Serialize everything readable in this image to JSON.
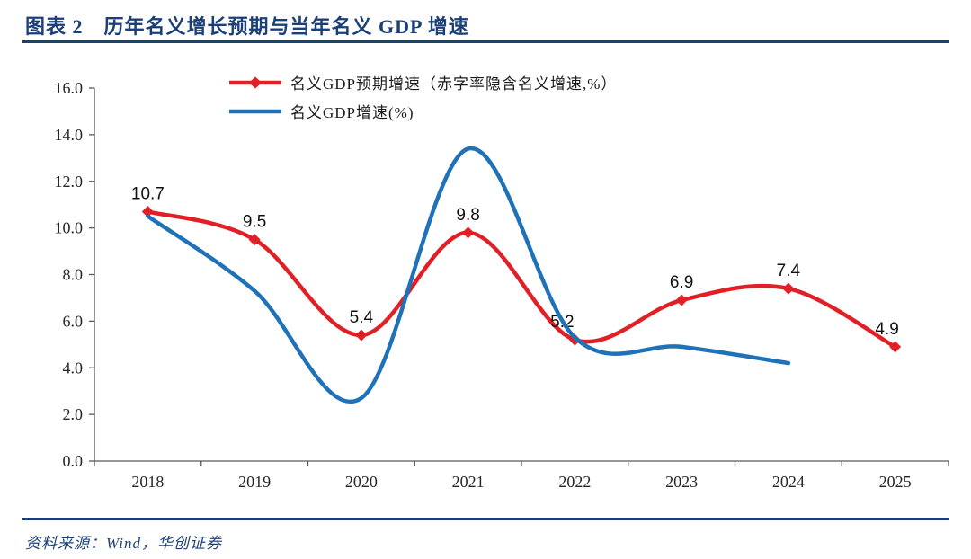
{
  "header": {
    "title": "图表 2　历年名义增长预期与当年名义 GDP 增速"
  },
  "footer": {
    "source_label": "资料来源：Wind，华创证券"
  },
  "colors": {
    "accent_navy": "#1B4077",
    "expected_red": "#E01F26",
    "actual_blue": "#1F72B8",
    "axis_line": "#595959",
    "axis_text": "#262626",
    "data_label_text": "#111111"
  },
  "chart_data": {
    "type": "line",
    "title": "历年名义增长预期与当年名义 GDP 增速",
    "categories": [
      "2018",
      "2019",
      "2020",
      "2021",
      "2022",
      "2023",
      "2024",
      "2025"
    ],
    "series": [
      {
        "name": "名义GDP预期增速（赤字率隐含名义增速,%）",
        "color": "#E01F26",
        "marker": "diamond",
        "smooth": true,
        "values": [
          10.7,
          9.5,
          5.4,
          9.8,
          5.2,
          6.9,
          7.4,
          4.9
        ],
        "data_labels": [
          "10.7",
          "9.5",
          "5.4",
          "9.8",
          "5.2",
          "6.9",
          "7.4",
          "4.9"
        ],
        "label_dx": [
          0,
          0,
          0,
          0,
          -14,
          0,
          0,
          -9
        ]
      },
      {
        "name": "名义GDP增速(%)",
        "color": "#1F72B8",
        "marker": "none",
        "smooth": true,
        "values": [
          10.5,
          7.3,
          2.7,
          13.4,
          5.3,
          4.9,
          4.2
        ],
        "data_labels": []
      }
    ],
    "xlabel": "",
    "ylabel": "",
    "ylim": [
      0,
      16
    ],
    "ytick_step": 2,
    "ytick_labels": [
      "16.0",
      "14.0",
      "12.0",
      "10.0",
      "8.0",
      "6.0",
      "4.0",
      "2.0",
      "0.0"
    ],
    "grid": false,
    "legend_position": "top-center"
  }
}
